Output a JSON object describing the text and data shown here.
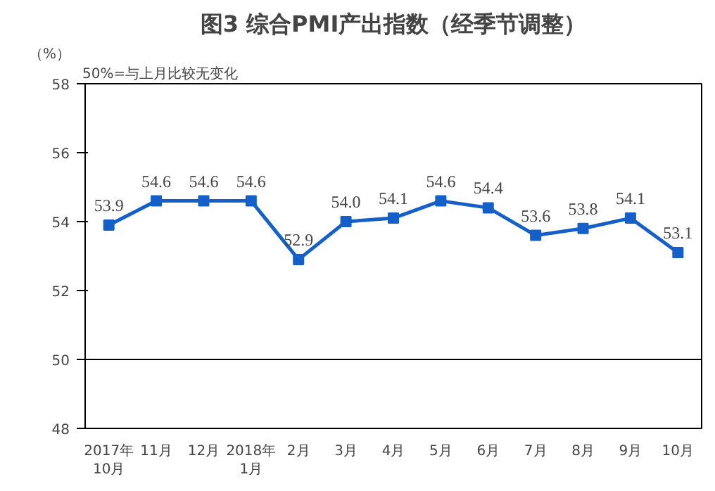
{
  "chart_data": {
    "type": "line",
    "title": "图3 综合PMI产出指数（经季节调整）",
    "ylabel": "（%）",
    "annotations": [
      "50%=与上月比较无变化"
    ],
    "categories": [
      "2017年\n10月",
      "11月",
      "12月",
      "2018年\n1月",
      "2月",
      "3月",
      "4月",
      "5月",
      "6月",
      "7月",
      "8月",
      "9月",
      "10月"
    ],
    "series": [
      {
        "color": "#1560c8",
        "values": [
          53.9,
          54.6,
          54.6,
          54.6,
          52.9,
          54.0,
          54.1,
          54.6,
          54.4,
          53.6,
          53.8,
          54.1,
          53.1
        ],
        "value_labels": [
          "53.9",
          "54.6",
          "54.6",
          "54.6",
          "52.9",
          "54.0",
          "54.1",
          "54.6",
          "54.4",
          "53.6",
          "53.8",
          "54.1",
          "53.1"
        ]
      }
    ],
    "ylim": [
      48,
      58
    ],
    "yticks": [
      48,
      50,
      52,
      54,
      56,
      58
    ],
    "ref_lines": [
      {
        "axis": "y",
        "value": 50,
        "color": "#000000"
      }
    ],
    "marker": "square",
    "grid": false
  }
}
